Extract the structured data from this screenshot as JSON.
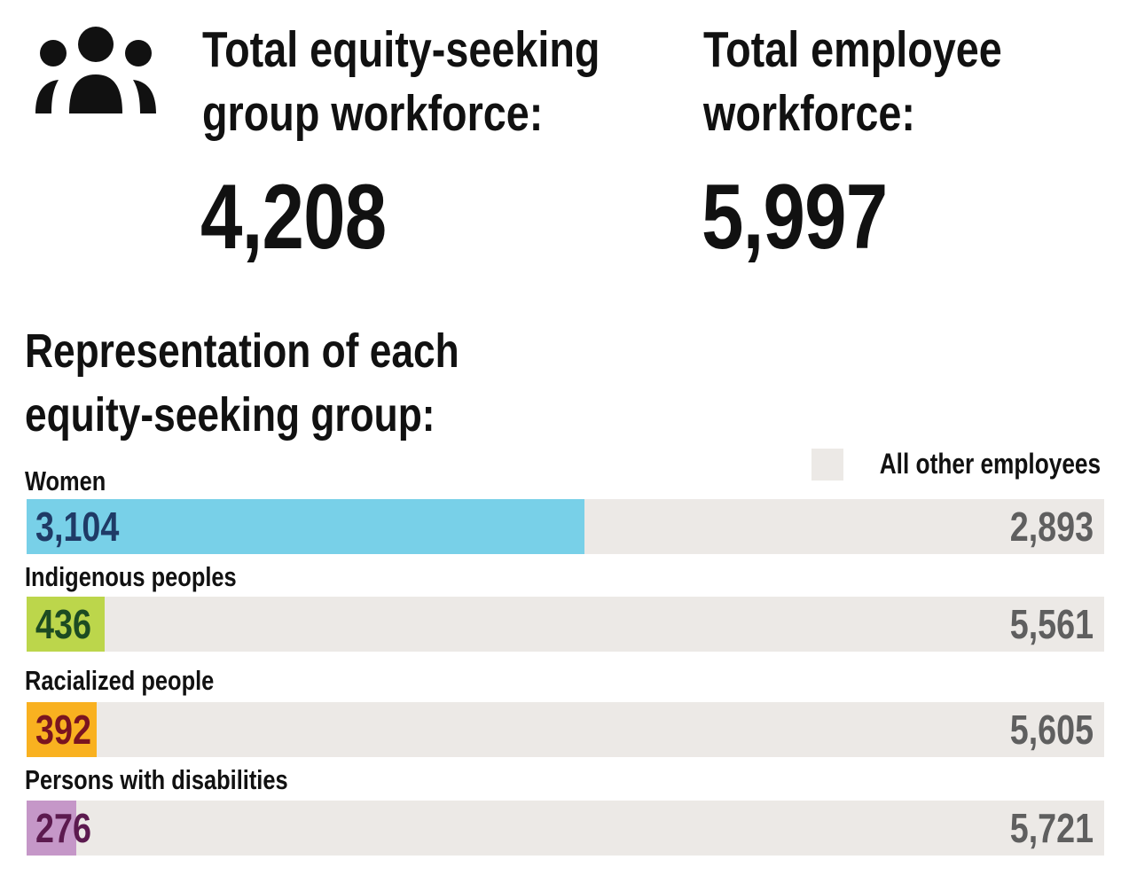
{
  "stats": {
    "equity_seeking": {
      "label_line1": "Total equity-seeking",
      "label_line2": "group workforce:",
      "value": "4,208"
    },
    "total": {
      "label_line1": "Total employee",
      "label_line2": "workforce:",
      "value": "5,997"
    }
  },
  "section_title": {
    "line1": "Representation of each",
    "line2": "equity-seeking group:"
  },
  "icons": {
    "people": "people-group-icon"
  },
  "colors": {
    "other_bar": "#ece9e6",
    "women_fill": "#78d0e8",
    "women_text": "#1f3a66",
    "indigenous_fill": "#bcd64b",
    "indigenous_text": "#1c4b22",
    "racialized_fill": "#f9b120",
    "racialized_text": "#7a1420",
    "disabilities_fill": "#c597c8",
    "disabilities_text": "#5c1a4f"
  },
  "chart_data": {
    "type": "bar",
    "orientation": "horizontal",
    "stacked": true,
    "legend": {
      "label": "All other employees",
      "placement": "top-right"
    },
    "categories": [
      "Women",
      "Indigenous peoples",
      "Racialized people",
      "Persons with disabilities"
    ],
    "total": 5997,
    "series": [
      {
        "values": [
          3104,
          436,
          392,
          276
        ]
      },
      {
        "name": "All other employees",
        "values": [
          2893,
          5561,
          5605,
          5721
        ]
      }
    ],
    "value_labels": [
      "3,104",
      "436",
      "392",
      "276"
    ],
    "other_labels": [
      "2,893",
      "5,561",
      "5,605",
      "5,721"
    ]
  }
}
